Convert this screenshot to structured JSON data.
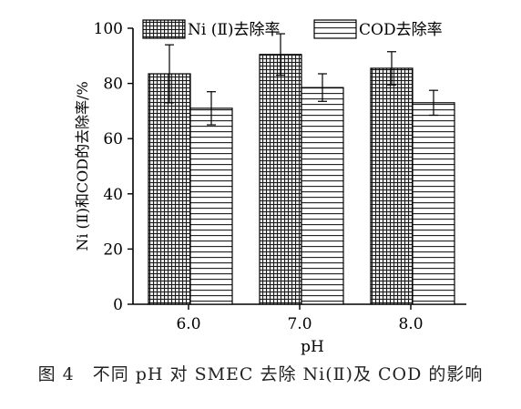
{
  "chart_data": {
    "type": "bar",
    "categories": [
      "6.0",
      "7.0",
      "8.0"
    ],
    "series": [
      {
        "name": "Ni (Ⅱ)去除率",
        "values": [
          83.5,
          90.5,
          85.5
        ],
        "errors": [
          10.5,
          7.5,
          6.0
        ],
        "pattern": "grid"
      },
      {
        "name": "COD去除率",
        "values": [
          71,
          78.5,
          73
        ],
        "errors": [
          6.0,
          5.0,
          4.5
        ],
        "pattern": "horizontal-lines"
      }
    ],
    "xlabel": "pH",
    "ylabel": "Ni (Ⅱ)和COD的去除率/%",
    "ylim": [
      0,
      100
    ],
    "yticks": [
      0,
      20,
      40,
      60,
      80,
      100
    ],
    "legend": "top-center",
    "grid": false
  },
  "caption": "图 4　不同 pH 对 SMEC 去除 Ni(Ⅱ)及 COD 的影响"
}
